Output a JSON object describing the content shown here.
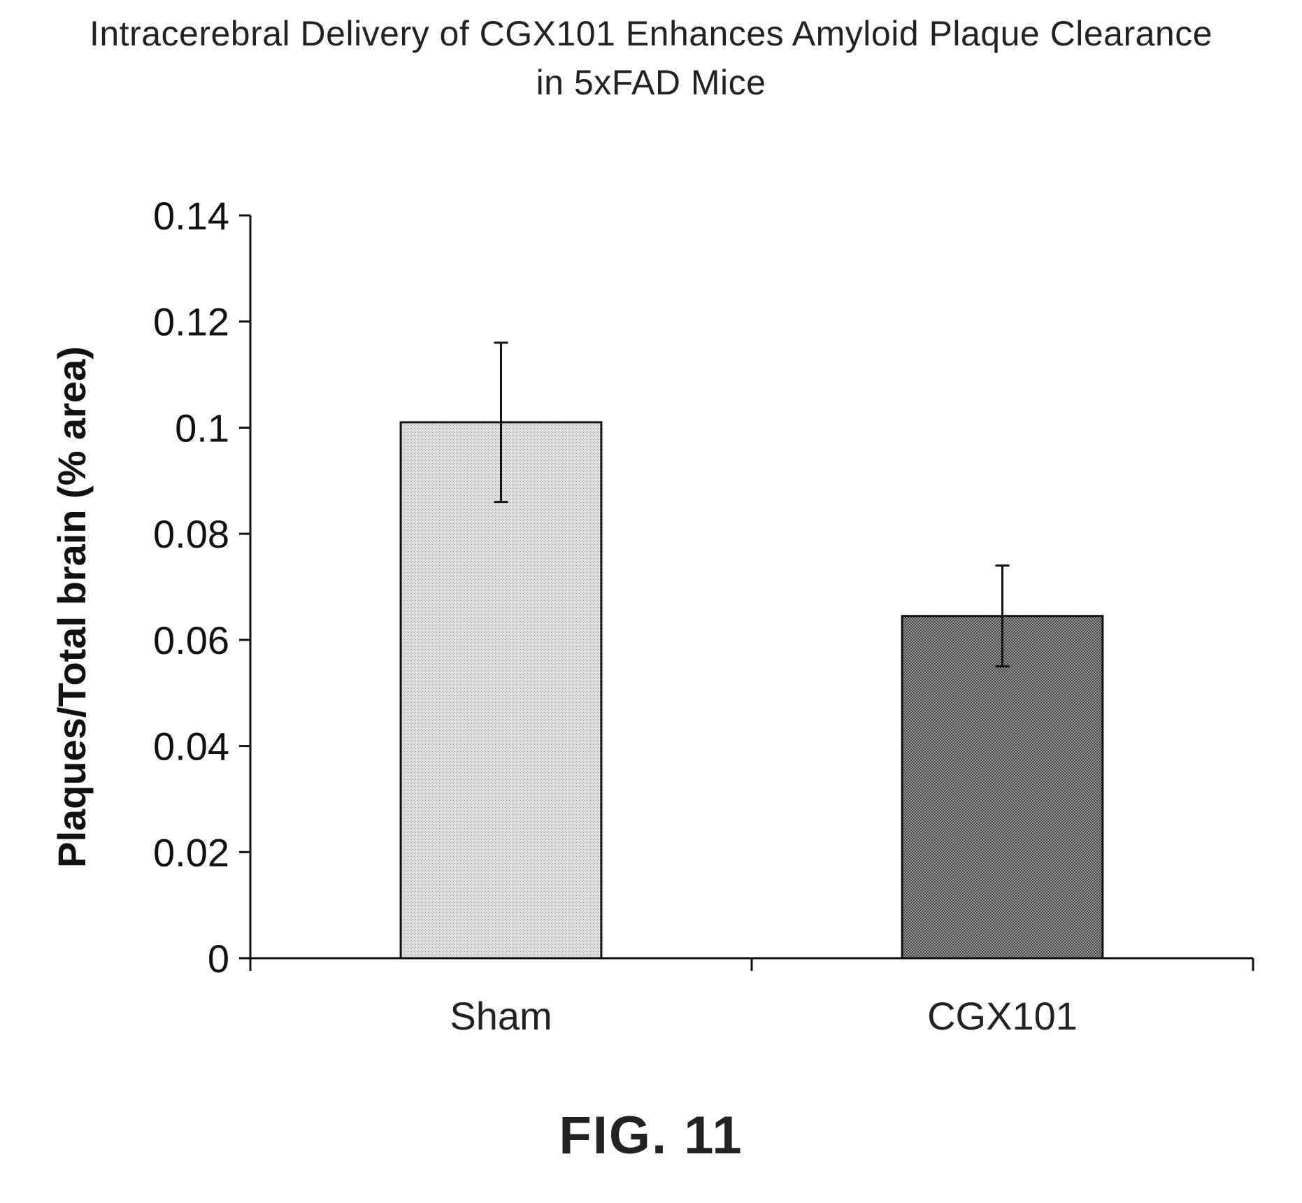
{
  "chart_data": {
    "type": "bar",
    "title_line1": "Intracerebral Delivery of CGX101 Enhances Amyloid Plaque Clearance",
    "title_line2": "in 5xFAD Mice",
    "ylabel": "Plaques/Total brain (% area)",
    "xlabel": "",
    "ylim": [
      0,
      0.14
    ],
    "yticks": [
      {
        "value": 0,
        "label": "0"
      },
      {
        "value": 0.02,
        "label": "0.02"
      },
      {
        "value": 0.04,
        "label": "0.04"
      },
      {
        "value": 0.06,
        "label": "0.06"
      },
      {
        "value": 0.08,
        "label": "0.08"
      },
      {
        "value": 0.1,
        "label": "0.1"
      },
      {
        "value": 0.12,
        "label": "0.12"
      },
      {
        "value": 0.14,
        "label": "0.14"
      }
    ],
    "categories": [
      "Sham",
      "CGX101"
    ],
    "values": [
      0.101,
      0.0645
    ],
    "error": [
      0.015,
      0.0095
    ],
    "bar_colors": [
      "#d2d2d2",
      "#7a7a7a"
    ],
    "grid": false,
    "legend": "none"
  },
  "figure_label": "FIG. 11"
}
